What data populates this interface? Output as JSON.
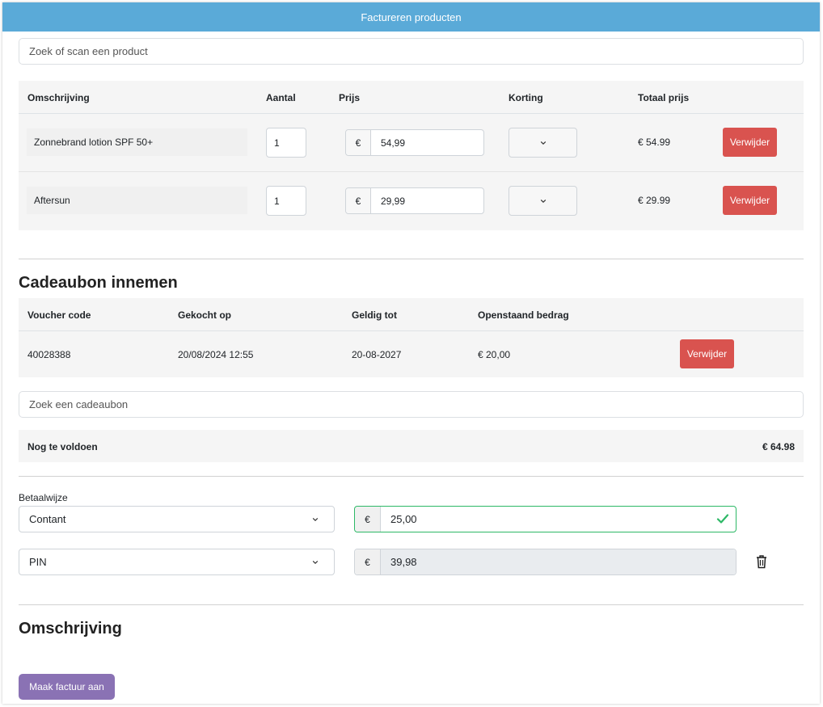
{
  "header": {
    "title": "Factureren producten"
  },
  "product_search": {
    "placeholder": "Zoek of scan een product"
  },
  "products": {
    "columns": [
      "Omschrijving",
      "Aantal",
      "Prijs",
      "Korting",
      "Totaal prijs"
    ],
    "rows": [
      {
        "description": "Zonnebrand lotion SPF 50+",
        "qty": "1",
        "currency": "€",
        "price": "54,99",
        "discount": "",
        "total": "€ 54.99",
        "delete_label": "Verwijder"
      },
      {
        "description": "Aftersun",
        "qty": "1",
        "currency": "€",
        "price": "29,99",
        "discount": "",
        "total": "€ 29.99",
        "delete_label": "Verwijder"
      }
    ]
  },
  "voucher": {
    "heading": "Cadeaubon innemen",
    "columns": [
      "Voucher code",
      "Gekocht op",
      "Geldig tot",
      "Openstaand bedrag"
    ],
    "rows": [
      {
        "code": "40028388",
        "bought": "20/08/2024 12:55",
        "valid_until": "20-08-2027",
        "open_amount": "€ 20,00",
        "delete_label": "Verwijder"
      }
    ],
    "search_placeholder": "Zoek een cadeaubon"
  },
  "due": {
    "label": "Nog te voldoen",
    "amount": "€ 64.98"
  },
  "payment": {
    "label": "Betaalwijze",
    "methods": [
      {
        "method": "Contant",
        "currency": "€",
        "amount": "25,00",
        "state": "valid"
      },
      {
        "method": "PIN",
        "currency": "€",
        "amount": "39,98",
        "state": "disabled"
      }
    ]
  },
  "description_section": {
    "heading": "Omschrijving"
  },
  "actions": {
    "create_invoice": "Maak factuur aan"
  },
  "colors": {
    "topbar": "#5aaad8",
    "danger": "#d9534f",
    "primary": "#8a72b4",
    "success": "#2db866"
  },
  "icons": [
    "chevron-down-icon",
    "check-icon",
    "trash-icon"
  ]
}
